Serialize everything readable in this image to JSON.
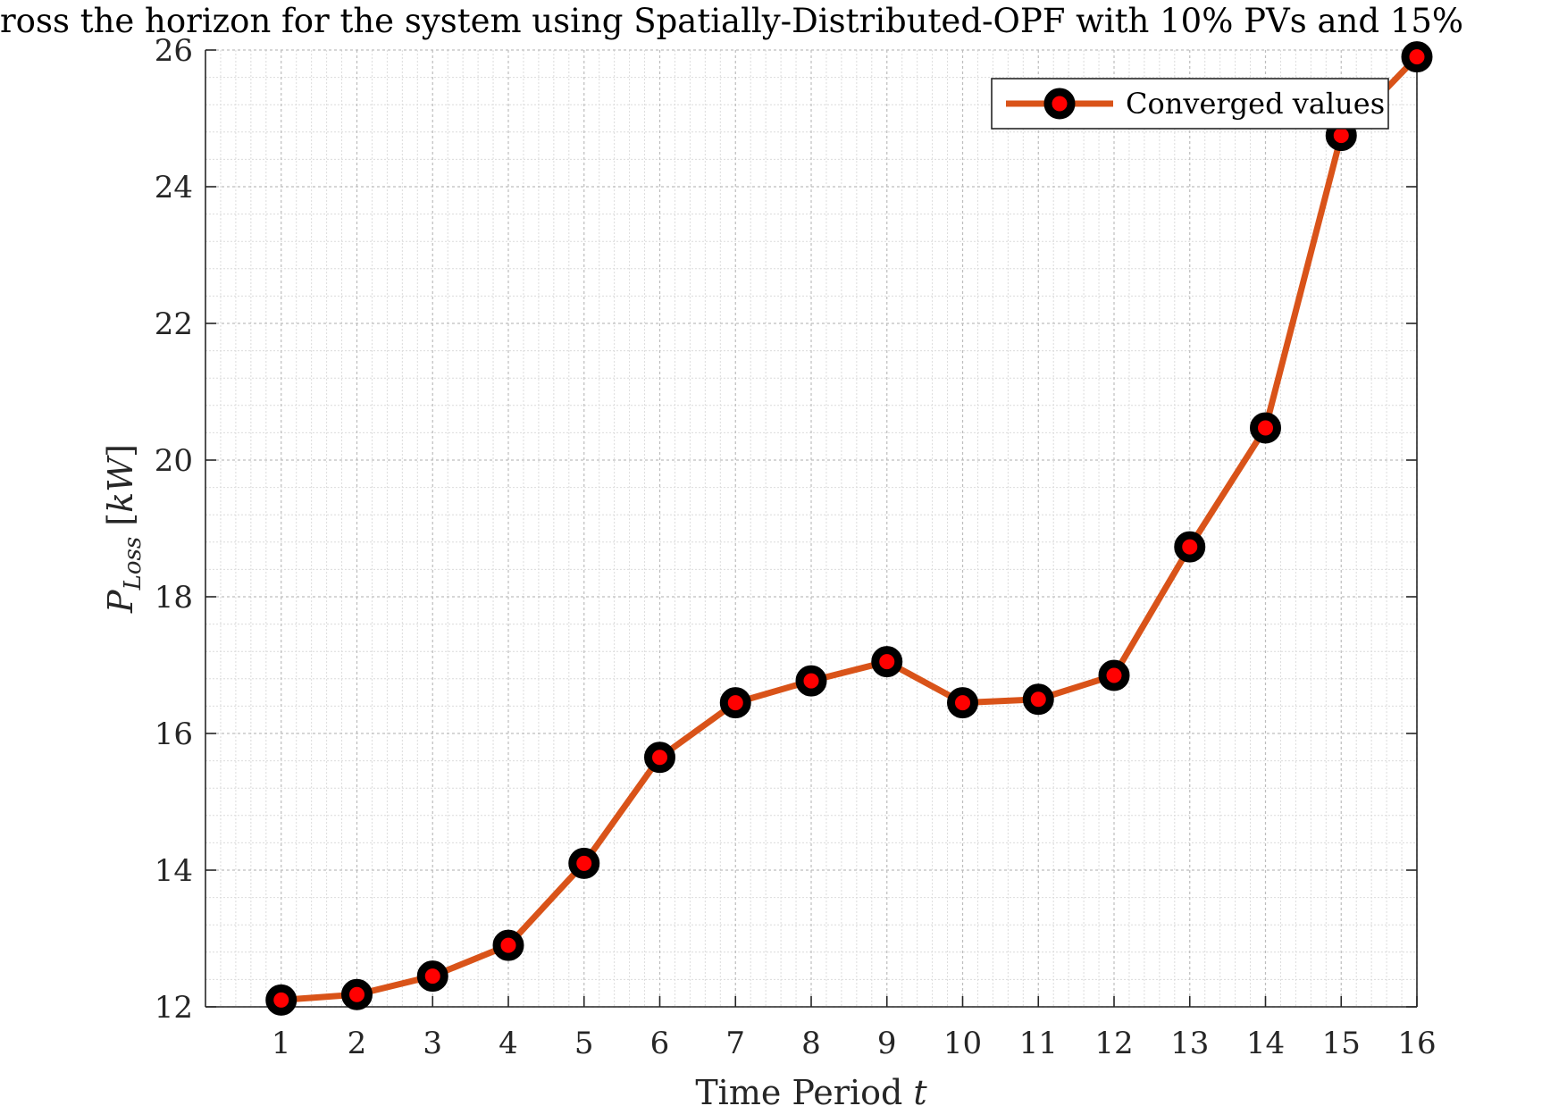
{
  "chart_data": {
    "type": "line",
    "title": "ross the horizon for the system using Spatially-Distributed-OPF with 10% PVs and 15%",
    "xlabel": "Time Period t",
    "xlabel_main": "Time Period ",
    "xlabel_var": "t",
    "ylabel": "P_Loss [kW]",
    "ylabel_main": "P",
    "ylabel_sub": "Loss",
    "ylabel_unit_open": " [",
    "ylabel_unit": "kW",
    "ylabel_unit_close": "]",
    "xlim": [
      0,
      16
    ],
    "ylim": [
      12,
      26
    ],
    "xticks": [
      "1",
      "2",
      "3",
      "4",
      "5",
      "6",
      "7",
      "8",
      "9",
      "10",
      "11",
      "12",
      "13",
      "14",
      "15",
      "16"
    ],
    "yticks": [
      "12",
      "14",
      "16",
      "18",
      "20",
      "22",
      "24",
      "26"
    ],
    "grid": true,
    "minor_grid": true,
    "legend_position": "top-right",
    "series": [
      {
        "name": "Converged values",
        "color": "#d95319",
        "marker_edge_color": "#000000",
        "marker_face_color": "#ff0000",
        "x": [
          1,
          2,
          3,
          4,
          5,
          6,
          7,
          8,
          9,
          10,
          11,
          12,
          13,
          14,
          15,
          16
        ],
        "y": [
          12.1,
          12.18,
          12.45,
          12.9,
          14.1,
          15.65,
          16.45,
          16.77,
          17.05,
          16.45,
          16.5,
          16.85,
          18.73,
          20.47,
          24.75,
          25.9
        ]
      }
    ]
  }
}
